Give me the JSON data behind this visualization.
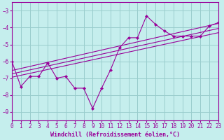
{
  "xlabel": "Windchill (Refroidissement éolien,°C)",
  "bg_color": "#c5eeed",
  "line_color": "#990099",
  "grid_color": "#99cccc",
  "xlim": [
    0,
    23
  ],
  "ylim": [
    -9.5,
    -2.5
  ],
  "yticks": [
    -9,
    -8,
    -7,
    -6,
    -5,
    -4,
    -3
  ],
  "xticks": [
    0,
    1,
    2,
    3,
    4,
    5,
    6,
    7,
    8,
    9,
    10,
    11,
    12,
    13,
    14,
    15,
    16,
    17,
    18,
    19,
    20,
    21,
    22,
    23
  ],
  "data_x": [
    0,
    1,
    2,
    3,
    4,
    5,
    6,
    7,
    8,
    9,
    10,
    11,
    12,
    13,
    14,
    15,
    16,
    17,
    18,
    19,
    20,
    21,
    22,
    23
  ],
  "data_y": [
    -6.0,
    -7.5,
    -6.9,
    -6.9,
    -6.1,
    -7.0,
    -6.9,
    -7.6,
    -7.6,
    -8.8,
    -7.6,
    -6.5,
    -5.2,
    -4.6,
    -4.6,
    -3.3,
    -3.8,
    -4.2,
    -4.5,
    -4.5,
    -4.5,
    -4.5,
    -3.9,
    -3.7
  ],
  "reg_lines": [
    {
      "x0": 0,
      "y0": -6.55,
      "x1": 23,
      "y1": -3.75
    },
    {
      "x0": 0,
      "y0": -6.75,
      "x1": 23,
      "y1": -4.05
    },
    {
      "x0": 0,
      "y0": -6.95,
      "x1": 23,
      "y1": -4.3
    }
  ]
}
